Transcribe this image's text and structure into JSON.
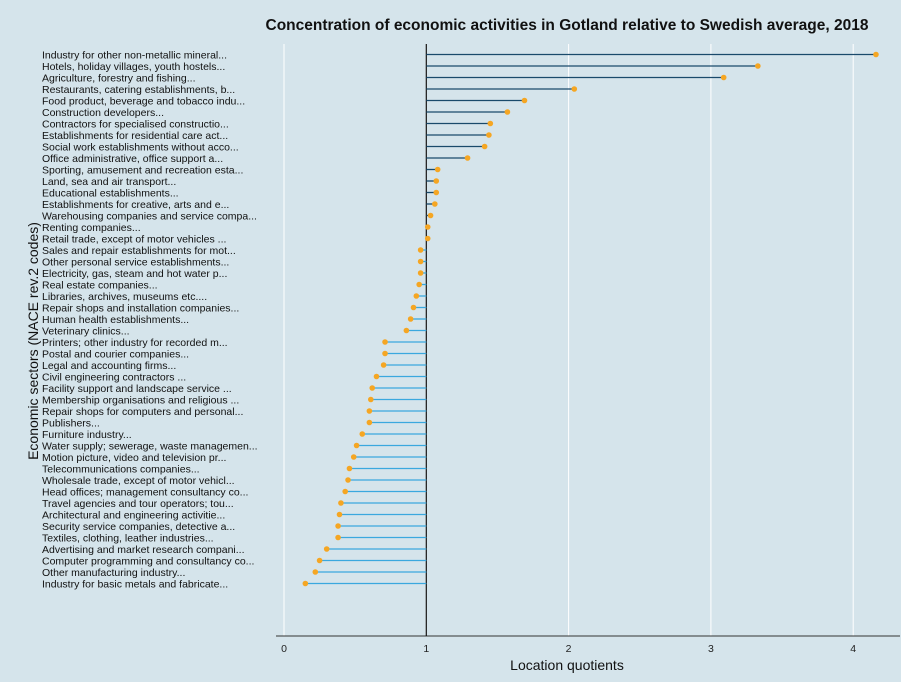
{
  "chart_data": {
    "type": "lollipop",
    "title": "Concentration of economic activities in Gotland relative to Swedish average, 2018",
    "xlabel": "Location quotients",
    "ylabel": "Economic sectors (NACE rev.2 codes)",
    "xlim": [
      0,
      4.2
    ],
    "xticks": [
      0,
      1,
      2,
      3,
      4
    ],
    "baseline": 1,
    "grid": "vertical",
    "colors": {
      "background": "#d5e4eb",
      "above_line": "#1a4a6b",
      "below_line": "#3aa8de",
      "point": "#f5a623",
      "gridline": "#ffffff",
      "axis": "#333333"
    },
    "categories": [
      "Industry for other non-metallic mineral...",
      "Hotels, holiday villages, youth hostels...",
      "Agriculture, forestry and fishing...",
      "Restaurants, catering establishments, b...",
      "Food product, beverage and tobacco indu...",
      "Construction developers...",
      "Contractors for specialised constructio...",
      "Establishments for residential care act...",
      "Social work establishments without acco...",
      "Office administrative, office support a...",
      "Sporting, amusement and recreation esta...",
      "Land, sea and air transport...",
      "Educational establishments...",
      "Establishments for creative, arts and e...",
      "Warehousing companies and service compa...",
      "Renting companies...",
      "Retail trade, except of motor vehicles ...",
      "Sales and repair establishments for mot...",
      "Other personal service establishments...",
      "Electricity, gas, steam and hot water p...",
      "Real estate companies...",
      "Libraries, archives, museums etc....",
      "Repair shops and installation companies...",
      "Human health establishments...",
      "Veterinary clinics...",
      "Printers; other industry for recorded m...",
      "Postal and courier companies...",
      "Legal and accounting firms...",
      "Civil engineering contractors        ...",
      "Facility support and landscape service ...",
      "Membership organisations and religious ...",
      "Repair shops for computers and personal...",
      "Publishers...",
      "Furniture industry...",
      "Water supply; sewerage, waste managemen...",
      "Motion picture, video and television pr...",
      "Telecommunications companies...",
      "Wholesale trade, except of motor vehicl...",
      "Head offices; management consultancy co...",
      "Travel agencies and tour operators; tou...",
      "Architectural and engineering activitie...",
      "Security service companies, detective a...",
      "Textiles, clothing, leather industries...",
      "Advertising and market research compani...",
      "Computer programming and consultancy co...",
      "Other manufacturing industry...",
      "Industry for basic metals and fabricate..."
    ],
    "values": [
      4.16,
      3.33,
      3.09,
      2.04,
      1.69,
      1.57,
      1.45,
      1.44,
      1.41,
      1.29,
      1.08,
      1.07,
      1.07,
      1.06,
      1.03,
      1.01,
      1.01,
      0.96,
      0.96,
      0.96,
      0.95,
      0.93,
      0.91,
      0.89,
      0.86,
      0.71,
      0.71,
      0.7,
      0.65,
      0.62,
      0.61,
      0.6,
      0.6,
      0.55,
      0.51,
      0.49,
      0.46,
      0.45,
      0.43,
      0.4,
      0.39,
      0.38,
      0.38,
      0.3,
      0.25,
      0.22,
      0.15
    ]
  }
}
